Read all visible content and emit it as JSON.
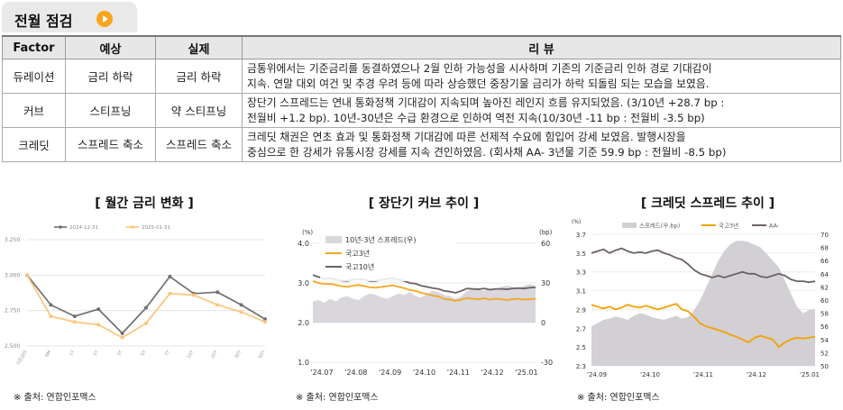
{
  "header": {
    "title": "전월 점검"
  },
  "table": {
    "headers": [
      "Factor",
      "예상",
      "실제",
      "리 뷰"
    ],
    "rows": [
      {
        "factor": "듀레이션",
        "expected": "금리 하락",
        "actual": "금리 하락",
        "review_1": "금통위에서는 기준금리를 동결하였으나 2월 인하 가능성을 시사하며 기존의 기준금리 인하 경로 기대감이",
        "review_2": "지속. 연말 대외 여건 및 추경 우려 등에 따라 상승했던 중장기물 금리가 하락 되돌림 되는 모습을 보였음."
      },
      {
        "factor": "커브",
        "expected": "스티프닝",
        "actual": "약 스티프닝",
        "review_1": "장단기 스프레드는 연내 통화정책 기대감이 지속되며 높아진 레인지 흐름 유지되었음. (3/10년 +28.7 bp :",
        "review_2": "전월비 +1.2 bp). 10년-30년은 수급 환경으로 인하여 역전 지속(10/30년 -11 bp : 전월비 -3.5 bp)"
      },
      {
        "factor": "크레딧",
        "expected": "스프레드 축소",
        "actual": "스프레드 축소",
        "review_1": "크레딧 채권은 연초 효과 및 통화정책 기대감에 따른 선제적 수요에 힘입어 강세 보였음. 발행시장을",
        "review_2": "중심으로 한 강세가 유통시장 강세를 지속 견인하였음. (회사채 AA- 3년물 기준 59.9 bp : 전월비 -8.5 bp)"
      }
    ]
  },
  "source_label": "※ 출처: 연합인포맥스",
  "chart_data": [
    {
      "type": "line",
      "title": "[ 월간 금리 변화 ]",
      "categories": [
        "기준금리",
        "6M",
        "1Y",
        "2Y",
        "3Y",
        "5Y",
        "7Y",
        "10Y",
        "20Y",
        "30Y",
        "50Y"
      ],
      "series": [
        {
          "name": "2024-12-31",
          "color": "#707070",
          "values": [
            3.0,
            2.79,
            2.71,
            2.76,
            2.59,
            2.77,
            2.99,
            2.87,
            2.88,
            2.79,
            2.69
          ]
        },
        {
          "name": "2025-01-31",
          "color": "#f9c67a",
          "values": [
            3.0,
            2.71,
            2.67,
            2.65,
            2.56,
            2.66,
            2.87,
            2.86,
            2.79,
            2.74,
            2.67
          ]
        }
      ],
      "yticks": [
        "3.250",
        "3.000",
        "2.750",
        "2.500"
      ],
      "ylim": [
        2.5,
        3.25
      ],
      "legend": "top",
      "grid": true
    },
    {
      "type": "area",
      "title": "[ 장단기 커브 추이 ]",
      "left_unit": "(%)",
      "right_unit": "(bp)",
      "yticks_left": [
        "4.0",
        "3.0",
        "2.0",
        "1.0"
      ],
      "yticks_right": [
        "60",
        "30",
        "0",
        "-30"
      ],
      "xticks": [
        "'24.07",
        "'24.08",
        "'24.09",
        "'24.10",
        "'24.11",
        "'24.12",
        "'25.01"
      ],
      "ylim_left": [
        1.0,
        4.0
      ],
      "ylim_right": [
        -30,
        60
      ],
      "series": [
        {
          "name": "10년-3년 스프레드(우)",
          "axis": "right",
          "color": "#d9d6dc",
          "values": [
            16,
            17,
            15,
            18,
            16,
            19,
            20,
            18,
            17,
            20,
            22,
            21,
            19,
            18,
            20,
            22,
            21,
            23,
            20,
            19,
            22,
            24,
            23,
            21,
            20,
            18,
            20,
            24,
            26,
            25,
            24,
            26,
            25,
            27,
            28,
            27,
            26,
            28,
            29,
            28
          ]
        },
        {
          "name": "국고3년",
          "axis": "left",
          "color": "#f5a623",
          "values": [
            3.05,
            3.0,
            2.97,
            2.98,
            2.95,
            2.92,
            2.9,
            2.93,
            2.95,
            2.92,
            2.89,
            2.88,
            2.9,
            2.92,
            2.94,
            2.9,
            2.87,
            2.82,
            2.8,
            2.75,
            2.72,
            2.68,
            2.66,
            2.6,
            2.58,
            2.55,
            2.58,
            2.62,
            2.6,
            2.59,
            2.61,
            2.58,
            2.6,
            2.59,
            2.57,
            2.59,
            2.6,
            2.58,
            2.59,
            2.6
          ]
        },
        {
          "name": "국고10년",
          "axis": "left",
          "color": "#6b6262",
          "values": [
            3.2,
            3.15,
            3.1,
            3.12,
            3.08,
            3.06,
            3.05,
            3.08,
            3.1,
            3.08,
            3.05,
            3.05,
            3.08,
            3.1,
            3.12,
            3.08,
            3.05,
            3.0,
            2.98,
            2.93,
            2.9,
            2.87,
            2.85,
            2.8,
            2.78,
            2.75,
            2.8,
            2.86,
            2.85,
            2.84,
            2.86,
            2.83,
            2.85,
            2.85,
            2.84,
            2.86,
            2.87,
            2.86,
            2.88,
            2.89
          ]
        }
      ],
      "legend": "top-left",
      "grid": true
    },
    {
      "type": "area",
      "title": "[ 크레딧 스프레드 추이 ]",
      "left_unit": "(%)",
      "yticks_left": [
        "3.7",
        "3.5",
        "3.3",
        "3.1",
        "2.9",
        "2.7",
        "2.5",
        "2.3"
      ],
      "yticks_right": [
        "70",
        "68",
        "66",
        "64",
        "62",
        "60",
        "58",
        "56",
        "54",
        "52",
        "50"
      ],
      "xticks": [
        "'24.09",
        "'24.10",
        "'24.11",
        "'24.12",
        "'25.01"
      ],
      "ylim_left": [
        2.3,
        3.7
      ],
      "ylim_right": [
        50,
        70
      ],
      "series": [
        {
          "name": "스프레드(우,bp)",
          "axis": "right",
          "color": "#d2d0d4",
          "values": [
            56,
            56.5,
            57,
            57.2,
            57.5,
            57.3,
            57,
            57.6,
            58,
            57.8,
            57.4,
            57.2,
            57,
            57.3,
            57.6,
            57.2,
            57.4,
            58.5,
            60,
            62,
            64,
            66,
            67.5,
            68.5,
            69,
            69,
            68.8,
            68.4,
            68,
            67,
            66,
            65,
            63,
            61,
            59,
            58,
            58.5,
            58.6
          ]
        },
        {
          "name": "국고3년",
          "axis": "left",
          "color": "#f5a000",
          "values": [
            2.95,
            2.93,
            2.91,
            2.93,
            2.9,
            2.92,
            2.95,
            2.93,
            2.92,
            2.94,
            2.92,
            2.9,
            2.92,
            2.94,
            2.96,
            2.9,
            2.88,
            2.82,
            2.75,
            2.72,
            2.7,
            2.68,
            2.66,
            2.63,
            2.61,
            2.58,
            2.55,
            2.6,
            2.62,
            2.6,
            2.58,
            2.5,
            2.55,
            2.58,
            2.6,
            2.59,
            2.6,
            2.61
          ]
        },
        {
          "name": "AA-",
          "axis": "left",
          "color": "#6b6262",
          "values": [
            3.5,
            3.52,
            3.54,
            3.5,
            3.53,
            3.55,
            3.52,
            3.5,
            3.51,
            3.5,
            3.52,
            3.53,
            3.5,
            3.48,
            3.45,
            3.43,
            3.38,
            3.32,
            3.28,
            3.26,
            3.24,
            3.26,
            3.24,
            3.26,
            3.28,
            3.3,
            3.28,
            3.28,
            3.25,
            3.24,
            3.26,
            3.28,
            3.26,
            3.22,
            3.2,
            3.2,
            3.19,
            3.2
          ]
        }
      ],
      "legend": "top",
      "grid": true
    }
  ]
}
